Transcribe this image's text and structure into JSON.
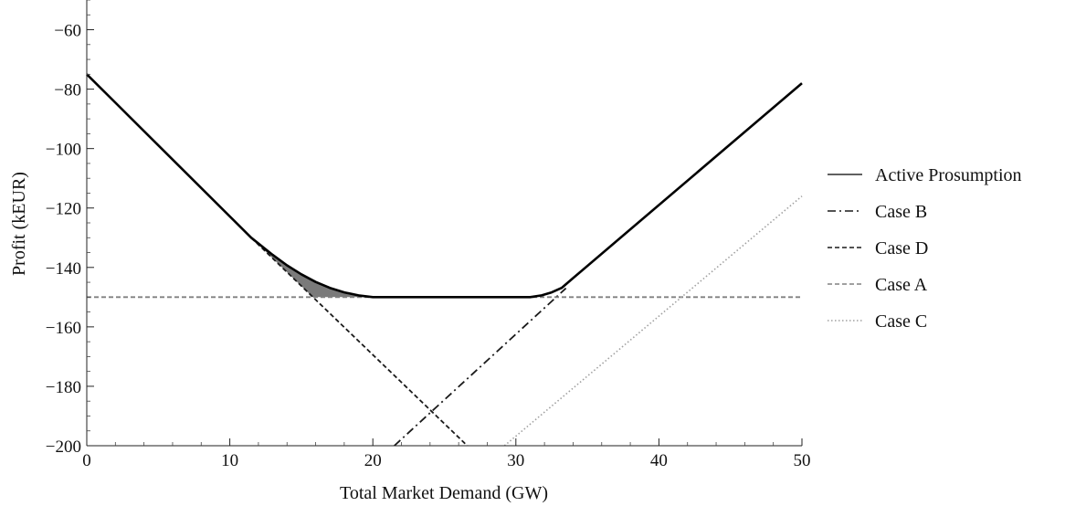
{
  "chart_data": {
    "type": "line",
    "title": "",
    "xlabel": "Total Market Demand (GW)",
    "ylabel": "Profit (kEUR)",
    "xlim": [
      0,
      50
    ],
    "ylim": [
      -200,
      -50
    ],
    "x_ticks": [
      0,
      10,
      20,
      30,
      40,
      50
    ],
    "y_ticks": [
      -200,
      -180,
      -160,
      -140,
      -120,
      -100,
      -80,
      -60
    ],
    "grid": false,
    "legend_position": "right",
    "series": [
      {
        "name": "Active Prosumption",
        "style": "solid",
        "color": "#000000",
        "x": [
          0,
          11.5,
          13,
          14,
          15,
          16,
          17,
          18,
          19,
          20,
          31,
          31.8,
          32.5,
          33.2,
          34,
          50
        ],
        "y": [
          -75,
          -130,
          -135.8,
          -139.3,
          -142.3,
          -144.9,
          -146.9,
          -148.4,
          -149.4,
          -150,
          -150,
          -149.4,
          -148.4,
          -146.9,
          -143.6,
          -78
        ]
      },
      {
        "name": "Case B",
        "style": "dashdot",
        "color": "#1a1a1a",
        "x": [
          21.5,
          33.5
        ],
        "y": [
          -200,
          -147
        ]
      },
      {
        "name": "Case D",
        "style": "dashed",
        "color": "#1a1a1a",
        "x": [
          11.5,
          26.6
        ],
        "y": [
          -130,
          -200
        ]
      },
      {
        "name": "Case A",
        "style": "dashed",
        "color": "#808080",
        "x": [
          0,
          50
        ],
        "y": [
          -150,
          -150
        ]
      },
      {
        "name": "Case C",
        "style": "dotted",
        "color": "#a0a0a0",
        "x": [
          29.2,
          50
        ],
        "y": [
          -200,
          -116
        ]
      }
    ],
    "shaded_region": {
      "color": "#7a7a7a",
      "upper_x": [
        11.5,
        13,
        14,
        15,
        15.8
      ],
      "upper_y": [
        -130,
        -135.8,
        -139.3,
        -142.3,
        -144.7
      ],
      "lower_x": [
        11.5,
        15.8,
        20
      ],
      "lower_y": [
        -130,
        -150,
        -150
      ]
    }
  }
}
